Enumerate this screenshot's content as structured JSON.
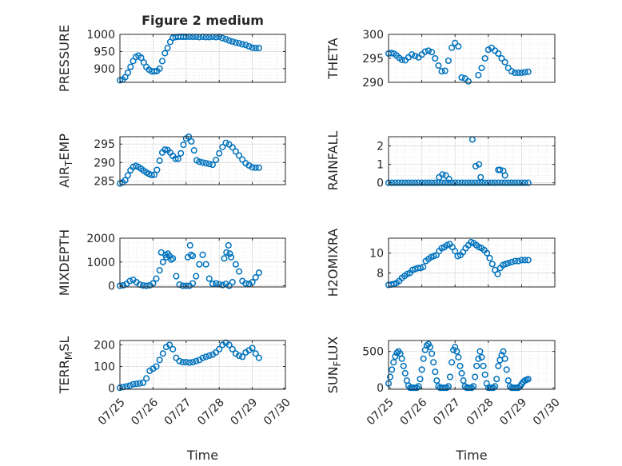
{
  "chart_data": [
    {
      "id": "pressure",
      "type": "scatter",
      "title": "Figure 2 medium",
      "ylabel": "PRESSURE",
      "xlim": [
        0,
        5
      ],
      "ylim": [
        860,
        1000
      ],
      "yticks": [
        900,
        950,
        1000
      ],
      "xticks": [
        0,
        1,
        2,
        3,
        4,
        5
      ],
      "xticklabels": [
        "07/25",
        "07/26",
        "07/27",
        "07/28",
        "07/29",
        "07/30"
      ],
      "show_xticklabels": false,
      "xlabel": "",
      "grid": true,
      "marker": "o",
      "color": "#0072bd",
      "x": [
        0.0,
        0.08,
        0.16,
        0.24,
        0.32,
        0.4,
        0.48,
        0.56,
        0.64,
        0.72,
        0.8,
        0.88,
        0.96,
        1.04,
        1.12,
        1.2,
        1.28,
        1.36,
        1.44,
        1.52,
        1.6,
        1.68,
        1.76,
        1.84,
        1.92,
        2.0,
        2.1,
        2.2,
        2.3,
        2.4,
        2.5,
        2.6,
        2.7,
        2.8,
        2.9,
        3.0,
        3.1,
        3.2,
        3.3,
        3.4,
        3.5,
        3.6,
        3.7,
        3.8,
        3.9,
        4.0,
        4.1,
        4.2
      ],
      "y": [
        866,
        868,
        875,
        888,
        905,
        922,
        934,
        938,
        932,
        918,
        905,
        897,
        892,
        892,
        893,
        900,
        922,
        945,
        960,
        978,
        990,
        992,
        993,
        993,
        993,
        993,
        993,
        993,
        993,
        992,
        993,
        992,
        992,
        993,
        992,
        993,
        989,
        986,
        982,
        979,
        976,
        974,
        971,
        969,
        965,
        961,
        960,
        960
      ]
    },
    {
      "id": "theta",
      "type": "scatter",
      "ylabel": "THETA",
      "xlim": [
        0,
        5
      ],
      "ylim": [
        290,
        300
      ],
      "yticks": [
        290,
        295,
        300
      ],
      "xticks": [
        0,
        1,
        2,
        3,
        4,
        5
      ],
      "xticklabels": [
        "07/25",
        "07/26",
        "07/27",
        "07/28",
        "07/29",
        "07/30"
      ],
      "show_xticklabels": false,
      "xlabel": "",
      "grid": true,
      "marker": "o",
      "color": "#0072bd",
      "x": [
        0.0,
        0.08,
        0.16,
        0.24,
        0.32,
        0.4,
        0.5,
        0.6,
        0.7,
        0.8,
        0.9,
        1.0,
        1.1,
        1.2,
        1.3,
        1.4,
        1.5,
        1.6,
        1.7,
        1.8,
        1.9,
        2.0,
        2.1,
        2.2,
        2.3,
        2.4,
        2.5,
        2.6,
        2.7,
        2.8,
        2.9,
        3.0,
        3.1,
        3.2,
        3.3,
        3.4,
        3.5,
        3.6,
        3.7,
        3.8,
        3.9,
        4.0,
        4.1,
        4.2
      ],
      "y": [
        296,
        296.1,
        296,
        295.6,
        295.1,
        294.7,
        294.6,
        295.2,
        295.8,
        295.5,
        295.2,
        295.8,
        296.4,
        296.6,
        296.3,
        295,
        293.5,
        292.3,
        292.4,
        294.5,
        297.2,
        298.2,
        297.5,
        291,
        290.8,
        290.2,
        289.9,
        289.9,
        291.5,
        293,
        295,
        296.8,
        297.2,
        296.6,
        296,
        295,
        294.2,
        293,
        292.3,
        292,
        292,
        292,
        292.1,
        292.2
      ]
    },
    {
      "id": "air_temp",
      "type": "scatter",
      "ylabel": "AIR_TEMP",
      "xlim": [
        0,
        5
      ],
      "ylim": [
        284,
        297
      ],
      "yticks": [
        285,
        290,
        295
      ],
      "xticks": [
        0,
        1,
        2,
        3,
        4,
        5
      ],
      "xticklabels": [
        "07/25",
        "07/26",
        "07/27",
        "07/28",
        "07/29",
        "07/30"
      ],
      "show_xticklabels": false,
      "xlabel": "",
      "grid": true,
      "marker": "o",
      "color": "#0072bd",
      "x": [
        0.0,
        0.08,
        0.16,
        0.24,
        0.32,
        0.4,
        0.48,
        0.56,
        0.64,
        0.72,
        0.8,
        0.88,
        0.96,
        1.04,
        1.12,
        1.2,
        1.28,
        1.36,
        1.44,
        1.52,
        1.6,
        1.68,
        1.76,
        1.84,
        1.92,
        2.0,
        2.08,
        2.16,
        2.24,
        2.32,
        2.4,
        2.5,
        2.6,
        2.7,
        2.8,
        2.9,
        3.0,
        3.1,
        3.2,
        3.3,
        3.4,
        3.5,
        3.6,
        3.7,
        3.8,
        3.9,
        4.0,
        4.1,
        4.2
      ],
      "y": [
        284.3,
        284.6,
        285.2,
        286.5,
        287.9,
        288.8,
        289.1,
        288.8,
        288.3,
        287.8,
        287.3,
        286.9,
        286.6,
        286.7,
        288,
        290.5,
        292.7,
        293.5,
        293.4,
        292.7,
        291.8,
        291,
        291,
        292.5,
        294.8,
        296.5,
        297,
        295.7,
        293.3,
        290.6,
        290.2,
        290,
        289.8,
        289.6,
        289.4,
        290.7,
        292.5,
        294.2,
        295.3,
        294.9,
        294.1,
        293,
        291.9,
        290.8,
        289.8,
        289.2,
        288.7,
        288.6,
        288.6
      ]
    },
    {
      "id": "rainfall",
      "type": "scatter",
      "ylabel": "RAINFALL",
      "xlim": [
        0,
        5
      ],
      "ylim": [
        -0.1,
        2.5
      ],
      "yticks": [
        0,
        1,
        2
      ],
      "xticks": [
        0,
        1,
        2,
        3,
        4,
        5
      ],
      "xticklabels": [
        "07/25",
        "07/26",
        "07/27",
        "07/28",
        "07/29",
        "07/30"
      ],
      "show_xticklabels": false,
      "xlabel": "",
      "grid": true,
      "marker": "o",
      "color": "#0072bd",
      "x": [
        0.0,
        0.1,
        0.2,
        0.3,
        0.4,
        0.5,
        0.6,
        0.7,
        0.8,
        0.9,
        1.0,
        1.1,
        1.2,
        1.3,
        1.4,
        1.5,
        1.6,
        1.7,
        1.8,
        1.9,
        2.0,
        2.1,
        2.2,
        2.3,
        2.4,
        2.5,
        2.6,
        2.7,
        2.8,
        2.9,
        3.0,
        3.1,
        3.2,
        3.3,
        3.4,
        3.5,
        3.6,
        3.7,
        3.8,
        3.9,
        4.0,
        4.1,
        4.2,
        1.52,
        1.62,
        1.72,
        1.82,
        2.52,
        2.62,
        2.72,
        2.77,
        3.3,
        3.35,
        3.45,
        3.5
      ],
      "y": [
        0,
        0,
        0,
        0,
        0,
        0,
        0,
        0,
        0,
        0,
        0,
        0,
        0,
        0,
        0,
        0,
        0,
        0,
        0,
        0,
        0,
        0,
        0,
        0,
        0,
        0,
        0,
        0,
        0,
        0,
        0,
        0,
        0,
        0,
        0,
        0,
        0,
        0,
        0,
        0,
        0,
        0,
        0,
        0.3,
        0.45,
        0.4,
        0.2,
        2.35,
        0.9,
        1.0,
        0.3,
        0.7,
        0.7,
        0.65,
        0.4
      ]
    },
    {
      "id": "mixdepth",
      "type": "scatter",
      "ylabel": "MIXDEPTH",
      "xlim": [
        0,
        5
      ],
      "ylim": [
        -50,
        2000
      ],
      "yticks": [
        0,
        1000,
        2000
      ],
      "xticks": [
        0,
        1,
        2,
        3,
        4,
        5
      ],
      "xticklabels": [
        "07/25",
        "07/26",
        "07/27",
        "07/28",
        "07/29",
        "07/30"
      ],
      "show_xticklabels": false,
      "xlabel": "",
      "grid": true,
      "marker": "o",
      "color": "#0072bd",
      "x": [
        0.0,
        0.1,
        0.2,
        0.3,
        0.4,
        0.5,
        0.6,
        0.7,
        0.8,
        0.9,
        1.0,
        1.1,
        1.2,
        1.3,
        1.4,
        1.5,
        1.6,
        1.7,
        1.8,
        1.9,
        2.0,
        2.1,
        2.2,
        2.3,
        2.4,
        2.5,
        2.6,
        2.7,
        2.8,
        2.9,
        3.0,
        3.1,
        3.2,
        3.3,
        3.4,
        3.5,
        3.6,
        3.7,
        3.8,
        3.9,
        4.0,
        4.1,
        4.2,
        1.25,
        1.38,
        1.45,
        1.55,
        2.05,
        2.12,
        2.15,
        2.2,
        3.15,
        3.22,
        3.28,
        3.32,
        3.36
      ],
      "y": [
        0,
        20,
        80,
        200,
        250,
        150,
        50,
        10,
        0,
        20,
        100,
        300,
        650,
        1000,
        1200,
        1250,
        1150,
        400,
        50,
        0,
        0,
        0,
        100,
        400,
        900,
        1300,
        900,
        300,
        80,
        100,
        60,
        30,
        80,
        0,
        150,
        900,
        600,
        200,
        100,
        80,
        150,
        350,
        550,
        1400,
        1300,
        1350,
        1100,
        1200,
        1700,
        1300,
        1250,
        1150,
        1400,
        1700,
        1350,
        1200
      ]
    },
    {
      "id": "h2omixra",
      "type": "scatter",
      "ylabel": "H2OMIXRA",
      "xlim": [
        0,
        5
      ],
      "ylim": [
        6.6,
        11.5
      ],
      "yticks": [
        8,
        10
      ],
      "xticks": [
        0,
        1,
        2,
        3,
        4,
        5
      ],
      "xticklabels": [
        "07/25",
        "07/26",
        "07/27",
        "07/28",
        "07/29",
        "07/30"
      ],
      "show_xticklabels": false,
      "xlabel": "",
      "grid": true,
      "marker": "o",
      "color": "#0072bd",
      "x": [
        0.0,
        0.08,
        0.16,
        0.24,
        0.32,
        0.4,
        0.48,
        0.56,
        0.64,
        0.72,
        0.8,
        0.88,
        0.96,
        1.04,
        1.12,
        1.2,
        1.28,
        1.36,
        1.44,
        1.52,
        1.6,
        1.68,
        1.76,
        1.84,
        1.92,
        2.0,
        2.08,
        2.16,
        2.24,
        2.32,
        2.4,
        2.48,
        2.56,
        2.64,
        2.72,
        2.8,
        2.88,
        2.96,
        3.04,
        3.12,
        3.2,
        3.28,
        3.36,
        3.44,
        3.52,
        3.6,
        3.7,
        3.8,
        3.9,
        4.0,
        4.1,
        4.2
      ],
      "y": [
        6.8,
        6.85,
        6.9,
        7.0,
        7.2,
        7.5,
        7.7,
        7.9,
        8.0,
        8.3,
        8.4,
        8.5,
        8.5,
        8.6,
        9.2,
        9.4,
        9.6,
        9.7,
        9.8,
        10.2,
        10.5,
        10.6,
        10.8,
        10.9,
        10.6,
        10.2,
        9.7,
        9.8,
        10.1,
        10.5,
        10.8,
        11.1,
        11.0,
        10.8,
        10.6,
        10.5,
        10.3,
        10.0,
        9.5,
        8.9,
        8.3,
        7.9,
        8.5,
        8.8,
        8.9,
        9.0,
        9.1,
        9.2,
        9.2,
        9.3,
        9.3,
        9.3
      ]
    },
    {
      "id": "terr_msl",
      "type": "scatter",
      "ylabel": "TERR_MSL",
      "xlim": [
        0,
        5
      ],
      "ylim": [
        -5,
        220
      ],
      "yticks": [
        0,
        100,
        200
      ],
      "xticks": [
        0,
        1,
        2,
        3,
        4,
        5
      ],
      "xticklabels": [
        "07/25",
        "07/26",
        "07/27",
        "07/28",
        "07/29",
        "07/30"
      ],
      "show_xticklabels": true,
      "xlabel": "Time",
      "grid": true,
      "marker": "o",
      "color": "#0072bd",
      "x": [
        0.0,
        0.1,
        0.2,
        0.3,
        0.4,
        0.5,
        0.6,
        0.7,
        0.8,
        0.9,
        1.0,
        1.1,
        1.2,
        1.3,
        1.4,
        1.5,
        1.6,
        1.7,
        1.8,
        1.9,
        2.0,
        2.1,
        2.2,
        2.3,
        2.4,
        2.5,
        2.6,
        2.7,
        2.8,
        2.9,
        3.0,
        3.1,
        3.2,
        3.3,
        3.4,
        3.5,
        3.6,
        3.7,
        3.8,
        3.9,
        4.0,
        4.1,
        4.2
      ],
      "y": [
        2,
        5,
        8,
        12,
        18,
        20,
        22,
        25,
        45,
        80,
        90,
        100,
        130,
        160,
        190,
        200,
        180,
        140,
        125,
        120,
        120,
        118,
        120,
        125,
        130,
        140,
        145,
        150,
        155,
        165,
        180,
        200,
        210,
        200,
        180,
        160,
        150,
        145,
        165,
        175,
        185,
        160,
        140
      ]
    },
    {
      "id": "sun_flux",
      "type": "scatter",
      "ylabel": "SUN_FLUX",
      "xlim": [
        0,
        5
      ],
      "ylim": [
        -20,
        650
      ],
      "yticks": [
        0,
        500
      ],
      "xticks": [
        0,
        1,
        2,
        3,
        4,
        5
      ],
      "xticklabels": [
        "07/25",
        "07/26",
        "07/27",
        "07/28",
        "07/29",
        "07/30"
      ],
      "show_xticklabels": true,
      "xlabel": "Time",
      "grid": true,
      "marker": "o",
      "color": "#0072bd",
      "x": [
        0.0,
        0.05,
        0.1,
        0.15,
        0.2,
        0.25,
        0.3,
        0.35,
        0.4,
        0.45,
        0.5,
        0.55,
        0.6,
        0.65,
        0.7,
        0.75,
        0.8,
        0.85,
        0.9,
        0.95,
        1.0,
        1.05,
        1.1,
        1.15,
        1.2,
        1.25,
        1.3,
        1.35,
        1.4,
        1.45,
        1.5,
        1.55,
        1.6,
        1.65,
        1.7,
        1.75,
        1.8,
        1.85,
        1.9,
        1.95,
        2.0,
        2.05,
        2.1,
        2.15,
        2.2,
        2.25,
        2.3,
        2.35,
        2.4,
        2.45,
        2.5,
        2.55,
        2.6,
        2.65,
        2.7,
        2.75,
        2.8,
        2.85,
        2.9,
        2.95,
        3.0,
        3.05,
        3.1,
        3.15,
        3.2,
        3.25,
        3.3,
        3.35,
        3.4,
        3.45,
        3.5,
        3.55,
        3.6,
        3.65,
        3.7,
        3.75,
        3.8,
        3.85,
        3.9,
        3.95,
        4.0,
        4.05,
        4.1,
        4.15,
        4.2
      ],
      "y": [
        60,
        150,
        250,
        350,
        430,
        480,
        500,
        470,
        400,
        300,
        200,
        100,
        30,
        0,
        0,
        0,
        0,
        0,
        20,
        120,
        250,
        400,
        520,
        580,
        600,
        560,
        470,
        350,
        220,
        100,
        20,
        0,
        0,
        0,
        0,
        0,
        20,
        150,
        350,
        520,
        560,
        500,
        420,
        300,
        200,
        100,
        20,
        0,
        0,
        0,
        0,
        20,
        150,
        300,
        400,
        500,
        420,
        300,
        180,
        60,
        0,
        0,
        0,
        0,
        20,
        120,
        300,
        380,
        450,
        500,
        400,
        250,
        100,
        20,
        0,
        0,
        0,
        0,
        0,
        20,
        50,
        80,
        100,
        110,
        120
      ]
    }
  ],
  "ylabel_display": {
    "air_temp": {
      "before": "AIR",
      "sub": "T",
      "after": "EMP"
    },
    "terr_msl": {
      "before": "TERR",
      "sub": "M",
      "after": "SL"
    },
    "sun_flux": {
      "before": "SUN",
      "sub": "F",
      "after": "LUX"
    }
  }
}
